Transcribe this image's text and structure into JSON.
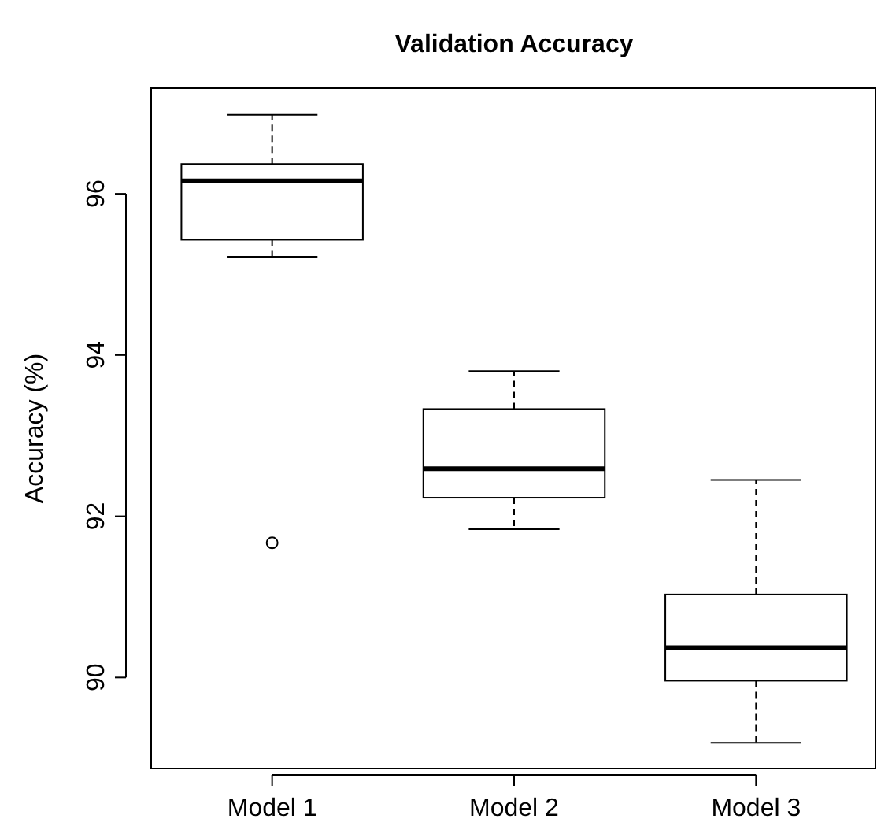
{
  "chart_data": {
    "type": "box",
    "title": "Validation Accuracy",
    "ylabel": "Accuracy (%)",
    "categories": [
      "Model 1",
      "Model 2",
      "Model 3"
    ],
    "boxes": [
      {
        "low": 95.22,
        "q1": 95.43,
        "median": 96.16,
        "q3": 96.37,
        "high": 96.98,
        "outliers": [
          91.67
        ]
      },
      {
        "low": 91.84,
        "q1": 92.23,
        "median": 92.59,
        "q3": 93.33,
        "high": 93.8
      },
      {
        "low": 89.19,
        "q1": 89.96,
        "median": 90.37,
        "q3": 91.03,
        "high": 92.45
      }
    ],
    "ylim": [
      88.87,
      97.31
    ],
    "yticks": [
      90,
      92,
      94,
      96
    ]
  }
}
